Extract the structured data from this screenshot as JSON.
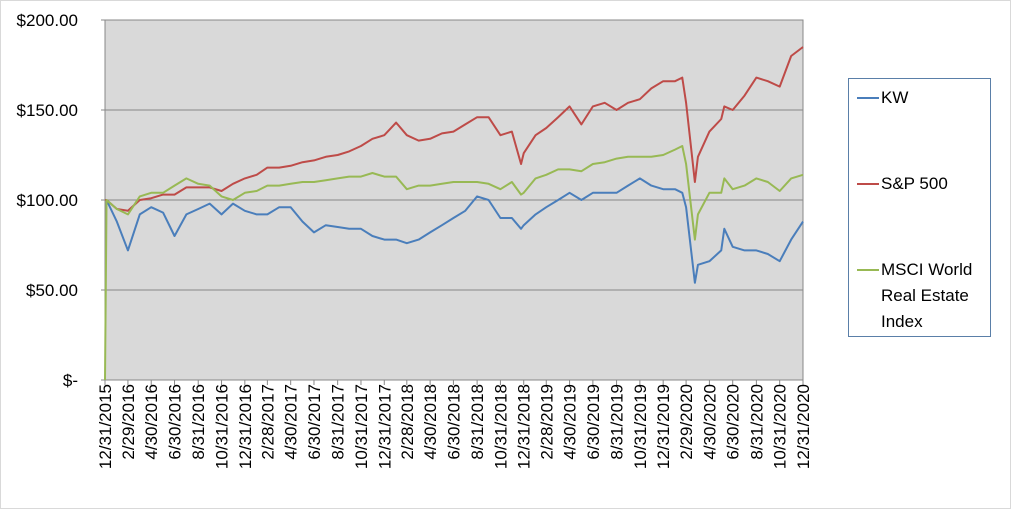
{
  "chart_data": {
    "type": "line",
    "x": [
      "12/31/2015",
      "1/4/2016",
      "1/31/2016",
      "2/29/2016",
      "3/31/2016",
      "4/30/2016",
      "5/31/2016",
      "6/30/2016",
      "7/31/2016",
      "8/31/2016",
      "9/30/2016",
      "10/31/2016",
      "11/30/2016",
      "12/31/2016",
      "1/31/2017",
      "2/28/2017",
      "3/31/2017",
      "4/30/2017",
      "5/31/2017",
      "6/30/2017",
      "7/31/2017",
      "8/31/2017",
      "9/30/2017",
      "10/31/2017",
      "11/30/2017",
      "12/31/2017",
      "1/31/2018",
      "2/28/2018",
      "3/31/2018",
      "4/30/2018",
      "5/31/2018",
      "6/30/2018",
      "7/31/2018",
      "8/31/2018",
      "9/30/2018",
      "10/31/2018",
      "11/30/2018",
      "12/24/2018",
      "12/31/2018",
      "1/31/2019",
      "2/28/2019",
      "3/31/2019",
      "4/30/2019",
      "5/31/2019",
      "6/30/2019",
      "7/31/2019",
      "8/31/2019",
      "9/30/2019",
      "10/31/2019",
      "11/30/2019",
      "12/31/2019",
      "1/31/2020",
      "2/19/2020",
      "2/29/2020",
      "3/23/2020",
      "3/31/2020",
      "4/30/2020",
      "5/31/2020",
      "6/8/2020",
      "6/30/2020",
      "7/31/2020",
      "8/31/2020",
      "9/30/2020",
      "10/31/2020",
      "11/30/2020",
      "12/31/2020"
    ],
    "series": [
      {
        "name": "KW",
        "color": "#4a7ebb",
        "values": [
          100,
          100,
          88,
          72,
          92,
          96,
          93,
          80,
          92,
          95,
          98,
          92,
          98,
          94,
          92,
          92,
          96,
          96,
          88,
          82,
          86,
          85,
          84,
          84,
          80,
          78,
          78,
          76,
          78,
          82,
          86,
          90,
          94,
          102,
          100,
          90,
          90,
          84,
          86,
          92,
          96,
          100,
          104,
          100,
          104,
          104,
          104,
          108,
          112,
          108,
          106,
          106,
          104,
          96,
          54,
          64,
          66,
          72,
          84,
          74,
          72,
          72,
          70,
          66,
          78,
          88
        ]
      },
      {
        "name": "S&P 500",
        "color": "#be4b48",
        "values": [
          100,
          100,
          95,
          94,
          100,
          101,
          103,
          103,
          107,
          107,
          107,
          105,
          109,
          112,
          114,
          118,
          118,
          119,
          121,
          122,
          124,
          125,
          127,
          130,
          134,
          136,
          143,
          136,
          133,
          134,
          137,
          138,
          142,
          146,
          146,
          136,
          138,
          120,
          126,
          136,
          140,
          146,
          152,
          142,
          152,
          154,
          150,
          154,
          156,
          162,
          166,
          166,
          168,
          154,
          110,
          124,
          138,
          145,
          152,
          150,
          158,
          168,
          166,
          163,
          180,
          185
        ]
      },
      {
        "name": "MSCI World Real Estate Index",
        "color": "#98b954",
        "values": [
          0,
          100,
          95,
          92,
          102,
          104,
          104,
          108,
          112,
          109,
          108,
          102,
          100,
          104,
          105,
          108,
          108,
          109,
          110,
          110,
          111,
          112,
          113,
          113,
          115,
          113,
          113,
          106,
          108,
          108,
          109,
          110,
          110,
          110,
          109,
          106,
          110,
          103,
          104,
          112,
          114,
          117,
          117,
          116,
          120,
          121,
          123,
          124,
          124,
          124,
          125,
          128,
          130,
          120,
          78,
          92,
          104,
          104,
          112,
          106,
          108,
          112,
          110,
          105,
          112,
          114
        ]
      }
    ],
    "xticks": [
      "12/31/2015",
      "2/29/2016",
      "4/30/2016",
      "6/30/2016",
      "8/31/2016",
      "10/31/2016",
      "12/31/2016",
      "2/28/2017",
      "4/30/2017",
      "6/30/2017",
      "8/31/2017",
      "10/31/2017",
      "12/31/2017",
      "2/28/2018",
      "4/30/2018",
      "6/30/2018",
      "8/31/2018",
      "10/31/2018",
      "12/31/2018",
      "2/28/2019",
      "4/30/2019",
      "6/30/2019",
      "8/31/2019",
      "10/31/2019",
      "12/31/2019",
      "2/29/2020",
      "4/30/2020",
      "6/30/2020",
      "8/31/2020",
      "10/31/2020",
      "12/31/2020"
    ],
    "ylim": [
      0,
      200
    ],
    "yticks": [
      {
        "value": 0,
        "label": "$-"
      },
      {
        "value": 50,
        "label": "$50.00"
      },
      {
        "value": 100,
        "label": "$100.00"
      },
      {
        "value": 150,
        "label": "$150.00"
      },
      {
        "value": 200,
        "label": "$200.00"
      }
    ],
    "grid": true
  }
}
